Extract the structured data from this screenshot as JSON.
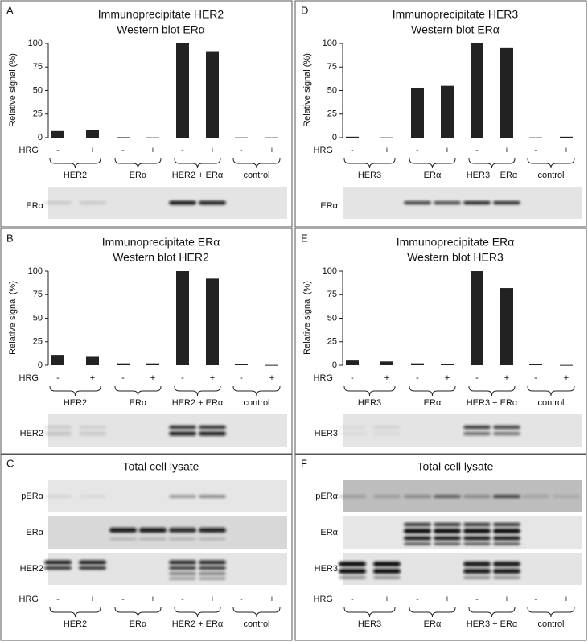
{
  "chart_data": [
    {
      "type": "bar",
      "panel": "A",
      "title": "Immunoprecipitate HER2",
      "subtitle": "Western blot ERα",
      "ylabel": "Relative signal (%)",
      "categories": [
        "-",
        "+",
        "-",
        "+",
        "-",
        "+",
        "-",
        "+"
      ],
      "values": [
        7,
        8,
        0.5,
        0.3,
        100,
        91,
        0.3,
        0.3
      ],
      "color": "#222222",
      "ylim": [
        0,
        100
      ],
      "yticks": [
        0,
        25,
        50,
        75,
        100
      ],
      "treatment_label": "HRG",
      "groups": [
        "HER2",
        "ERα",
        "HER2 + ERα",
        "control"
      ],
      "blot_label": "ERα"
    },
    {
      "type": "bar",
      "panel": "B",
      "title": "Immunoprecipitate ERα",
      "subtitle": "Western blot HER2",
      "ylabel": "Relative signal (%)",
      "categories": [
        "-",
        "+",
        "-",
        "+",
        "-",
        "+",
        "-",
        "+"
      ],
      "values": [
        11,
        9,
        2,
        2,
        100,
        92,
        1,
        0.3
      ],
      "color": "#222222",
      "ylim": [
        0,
        100
      ],
      "yticks": [
        0,
        25,
        50,
        75,
        100
      ],
      "treatment_label": "HRG",
      "groups": [
        "HER2",
        "ERα",
        "HER2 + ERα",
        "control"
      ],
      "blot_label": "HER2"
    },
    {
      "type": "bar",
      "panel": "D",
      "title": "Immunoprecipitate HER3",
      "subtitle": "Western blot ERα",
      "ylabel": "Relative signal (%)",
      "categories": [
        "-",
        "+",
        "-",
        "+",
        "-",
        "+",
        "-",
        "+"
      ],
      "values": [
        1,
        0.3,
        53,
        55,
        100,
        95,
        0.3,
        1
      ],
      "color": "#222222",
      "ylim": [
        0,
        100
      ],
      "yticks": [
        0,
        25,
        50,
        75,
        100
      ],
      "treatment_label": "HRG",
      "groups": [
        "HER3",
        "ERα",
        "HER3 + ERα",
        "control"
      ],
      "blot_label": "ERα"
    },
    {
      "type": "bar",
      "panel": "E",
      "title": "Immunoprecipitate ERα",
      "subtitle": "Western blot HER3",
      "ylabel": "Relative signal (%)",
      "categories": [
        "-",
        "+",
        "-",
        "+",
        "-",
        "+",
        "-",
        "+"
      ],
      "values": [
        5,
        4,
        2,
        1,
        100,
        82,
        1,
        0.3
      ],
      "color": "#222222",
      "ylim": [
        0,
        100
      ],
      "yticks": [
        0,
        25,
        50,
        75,
        100
      ],
      "treatment_label": "HRG",
      "groups": [
        "HER3",
        "ERα",
        "HER3 + ERα",
        "control"
      ],
      "blot_label": "HER3"
    }
  ],
  "lysate_panels": [
    {
      "panel": "C",
      "title": "Total cell lysate",
      "blot_labels": [
        "pERα",
        "ERα",
        "HER2"
      ],
      "treatment_label": "HRG",
      "categories": [
        "-",
        "+",
        "-",
        "+",
        "-",
        "+",
        "-",
        "+"
      ],
      "groups": [
        "HER2",
        "ERα",
        "HER2 + ERα",
        "control"
      ]
    },
    {
      "panel": "F",
      "title": "Total cell lysate",
      "blot_labels": [
        "pERα",
        "ERα",
        "HER3"
      ],
      "treatment_label": "HRG",
      "categories": [
        "-",
        "+",
        "-",
        "+",
        "-",
        "+",
        "-",
        "+"
      ],
      "groups": [
        "HER3",
        "ERα",
        "HER3 + ERα",
        "control"
      ]
    }
  ]
}
